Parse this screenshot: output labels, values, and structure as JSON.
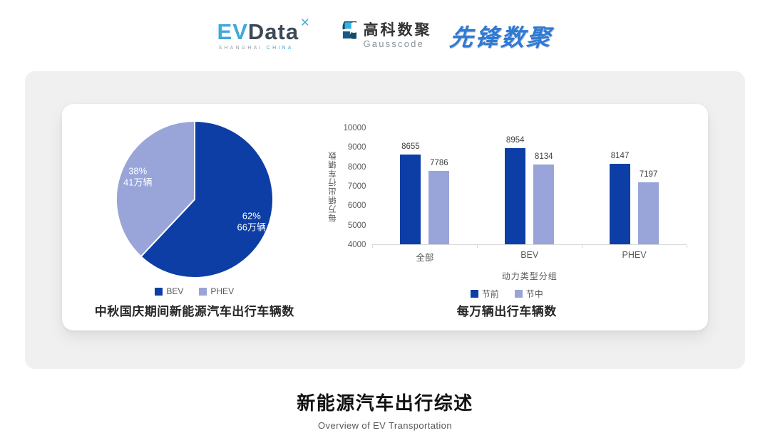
{
  "header": {
    "evdata": {
      "part1": "EV",
      "part2": "Data",
      "sup": "✕",
      "tagline1": "SHANGHAI",
      "tagline2": "CHINA"
    },
    "gausscode": {
      "name_cn": "高科数聚",
      "name_en": "Gausscode"
    },
    "pioneer": {
      "name": "先锋数聚"
    }
  },
  "chart_data": [
    {
      "type": "pie",
      "title": "中秋国庆期间新能源汽车出行车辆数",
      "start_angle_deg": -90,
      "direction": "clockwise",
      "slices": [
        {
          "label": "BEV",
          "percent": 62,
          "value_label": "66万辆",
          "color": "#0c3ea6"
        },
        {
          "label": "PHEV",
          "percent": 38,
          "value_label": "41万辆",
          "color": "#99a4d8"
        }
      ],
      "legend_position": "bottom"
    },
    {
      "type": "bar",
      "title": "每万辆出行车辆数",
      "categories": [
        "全部",
        "BEV",
        "PHEV"
      ],
      "series": [
        {
          "name": "节前",
          "values": [
            8655,
            8954,
            8147
          ],
          "color": "#0c3ea6"
        },
        {
          "name": "节中",
          "values": [
            7786,
            8134,
            7197
          ],
          "color": "#99a4d8"
        }
      ],
      "xlabel": "动力类型分组",
      "ylabel": "每万辆出行车辆数",
      "ylim": [
        4000,
        10000
      ],
      "ytick_step": 1000,
      "grid": false,
      "legend_position": "bottom"
    }
  ],
  "footer": {
    "title": "新能源汽车出行综述",
    "subtitle": "Overview of EV Transportation"
  }
}
